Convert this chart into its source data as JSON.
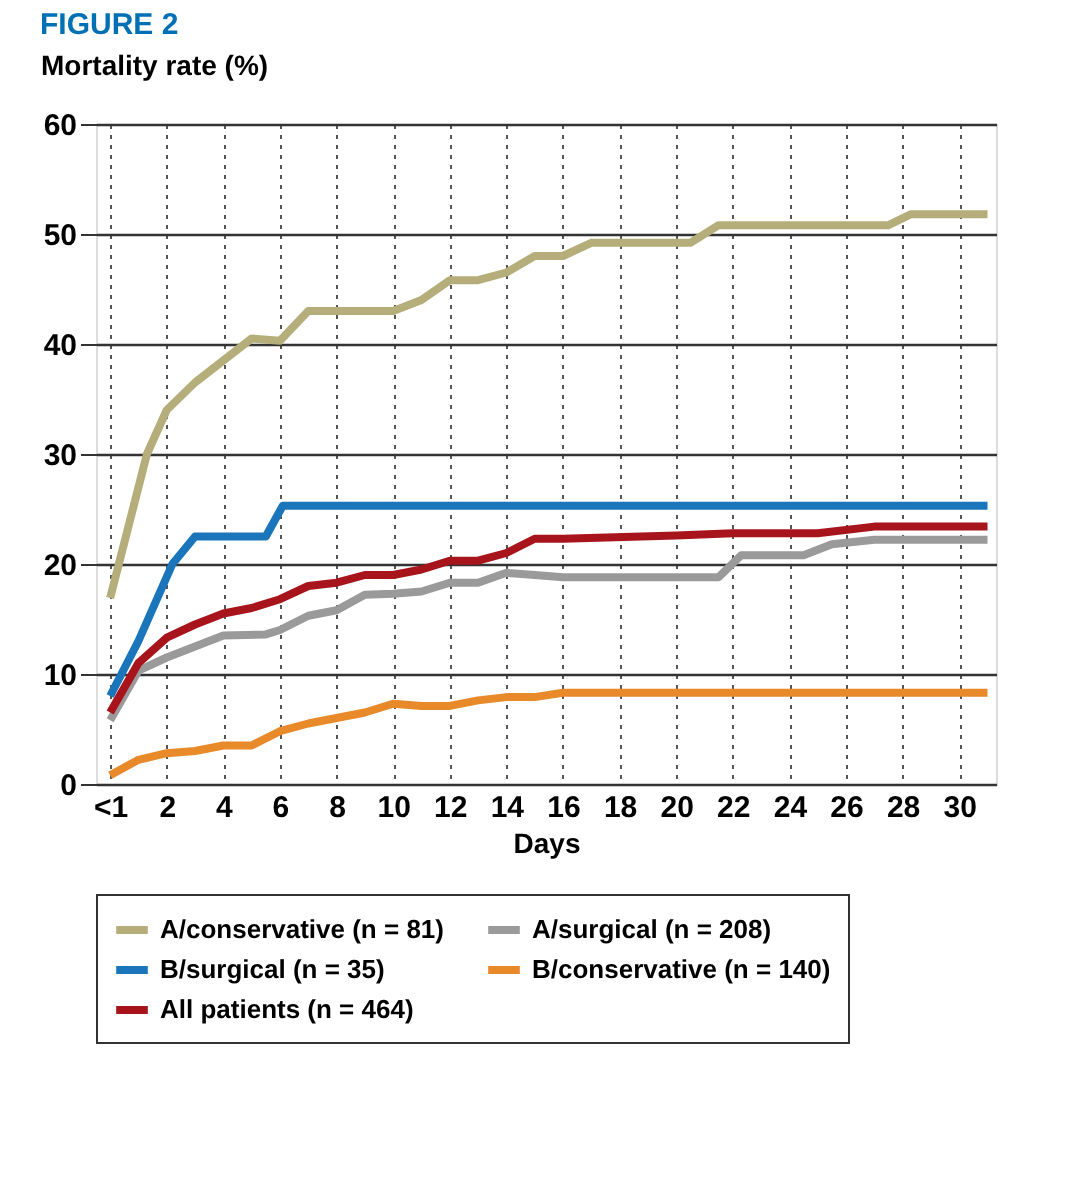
{
  "chart_data": {
    "type": "line",
    "title": "FIGURE 2",
    "ylabel": "Mortality rate (%)",
    "xlabel": "Days",
    "xlim": [
      -0.5,
      31.3
    ],
    "xticks": [
      {
        "value": 0,
        "label": "<1"
      },
      2,
      4,
      6,
      8,
      10,
      12,
      14,
      16,
      18,
      20,
      22,
      24,
      26,
      28,
      30
    ],
    "ylim": [
      0,
      60
    ],
    "yticks": [
      0,
      10,
      20,
      30,
      40,
      50,
      60
    ],
    "grid": true,
    "legend": "bottom",
    "marker": "none",
    "line_style": "solid",
    "series": [
      {
        "name": "A/conservative (n = 81)",
        "color": "#b5ad7a",
        "x": [
          0,
          1.3,
          2,
          3,
          4,
          5,
          6,
          7,
          8,
          10,
          11,
          12,
          13,
          14,
          15,
          16,
          17,
          18,
          20.5,
          21.5,
          27.5,
          28.3,
          31
        ],
        "values": [
          16.9,
          30,
          34,
          36.5,
          38.5,
          40.5,
          40.3,
          43,
          43,
          43,
          44,
          45.8,
          45.8,
          46.5,
          48,
          48,
          49.2,
          49.2,
          49.2,
          50.8,
          50.8,
          51.8,
          51.8
        ]
      },
      {
        "name": "A/surgical (n = 208)",
        "color": "#9a9a9a",
        "x": [
          0,
          1,
          2,
          3,
          4,
          5.5,
          6,
          7,
          8,
          9,
          10,
          11,
          12,
          13,
          14,
          15,
          16,
          21.5,
          22.3,
          24.5,
          25.5,
          27,
          31
        ],
        "values": [
          5.8,
          10.3,
          11.5,
          12.5,
          13.5,
          13.6,
          14,
          15.3,
          15.8,
          17.2,
          17.3,
          17.5,
          18.3,
          18.3,
          19.2,
          19,
          18.8,
          18.8,
          20.8,
          20.8,
          21.8,
          22.2,
          22.2
        ]
      },
      {
        "name": "B/surgical (n = 35)",
        "color": "#1a75bb",
        "x": [
          0,
          1,
          2.2,
          3,
          5.5,
          6.1,
          31
        ],
        "values": [
          8,
          13,
          20,
          22.5,
          22.5,
          25.3,
          25.3
        ]
      },
      {
        "name": "B/conservative (n = 140)",
        "color": "#e8892a",
        "x": [
          0,
          1,
          2,
          3,
          4,
          5,
          6,
          7,
          8,
          9,
          10,
          11,
          12,
          13,
          14,
          15,
          16,
          31
        ],
        "values": [
          0.8,
          2.2,
          2.8,
          3,
          3.5,
          3.5,
          4.8,
          5.5,
          6,
          6.5,
          7.3,
          7.1,
          7.1,
          7.6,
          7.9,
          7.9,
          8.3,
          8.3
        ]
      },
      {
        "name": "All patients (n = 464)",
        "color": "#a8141c",
        "x": [
          0,
          1,
          2,
          3,
          4,
          5,
          6,
          7,
          8,
          9,
          10,
          11,
          12,
          13,
          14,
          15,
          16,
          20,
          22,
          25,
          27,
          31
        ],
        "values": [
          6.5,
          11,
          13.3,
          14.5,
          15.5,
          16,
          16.8,
          18,
          18.3,
          19,
          19,
          19.5,
          20.3,
          20.3,
          21,
          22.3,
          22.3,
          22.6,
          22.8,
          22.8,
          23.4,
          23.4
        ]
      }
    ]
  }
}
